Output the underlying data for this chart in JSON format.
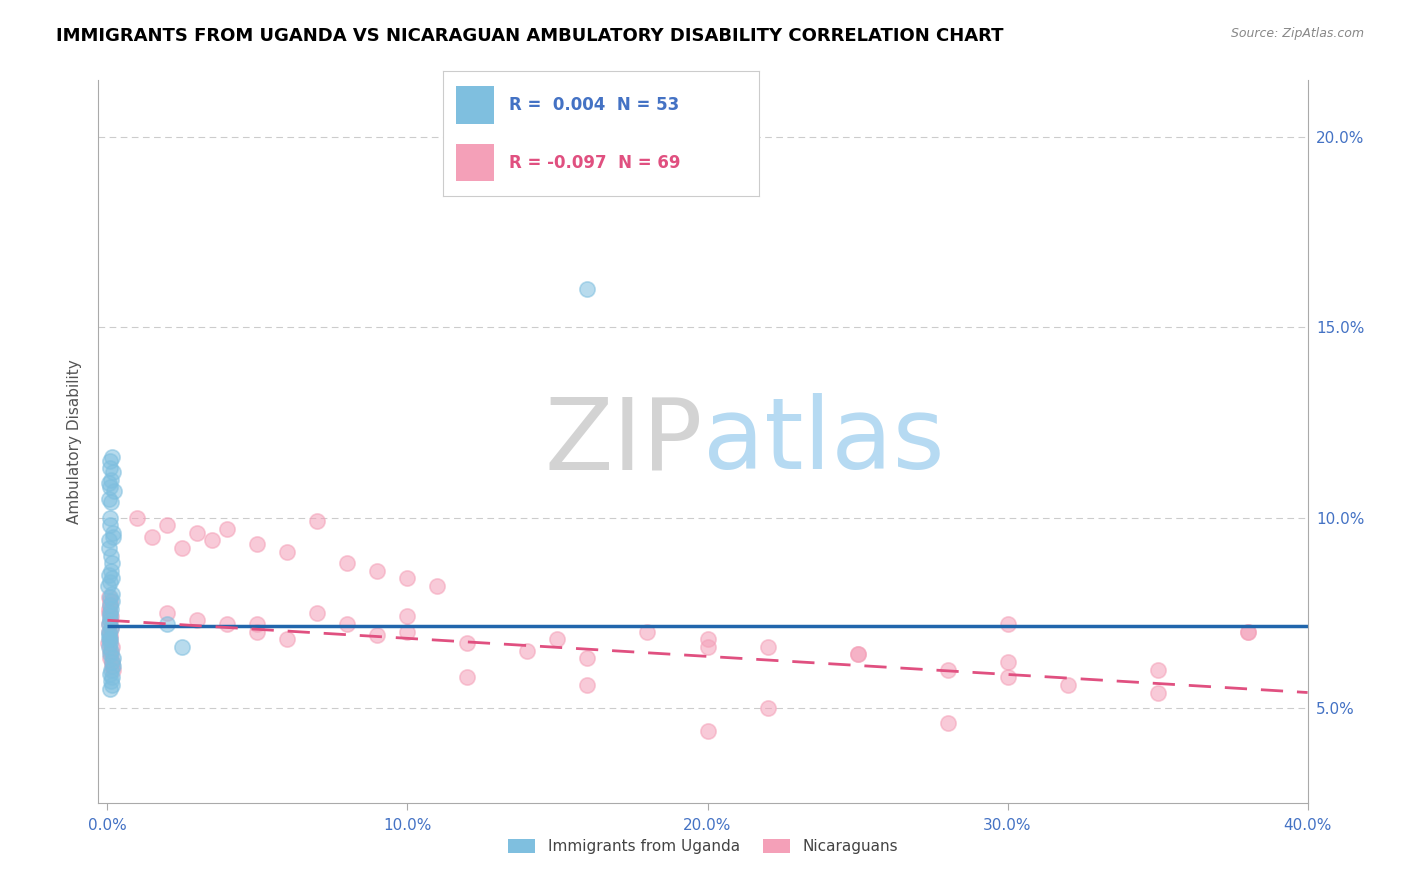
{
  "title": "IMMIGRANTS FROM UGANDA VS NICARAGUAN AMBULATORY DISABILITY CORRELATION CHART",
  "source": "Source: ZipAtlas.com",
  "ylabel": "Ambulatory Disability",
  "r1": 0.004,
  "r2": -0.097,
  "n1": 53,
  "n2": 69,
  "xmin": 0.0,
  "xmax": 0.4,
  "ymin": 0.025,
  "ymax": 0.215,
  "yticks": [
    0.05,
    0.1,
    0.15,
    0.2
  ],
  "ytick_labels": [
    "5.0%",
    "10.0%",
    "15.0%",
    "20.0%"
  ],
  "xticks": [
    0.0,
    0.1,
    0.2,
    0.3,
    0.4
  ],
  "xtick_labels": [
    "0.0%",
    "10.0%",
    "20.0%",
    "30.0%",
    "40.0%"
  ],
  "color_blue": "#7fbfdf",
  "color_pink": "#f4a0b8",
  "title_fontsize": 13,
  "axis_label_fontsize": 11,
  "tick_fontsize": 11,
  "scatter_alpha": 0.55,
  "scatter_size": 120,
  "uganda_x": [
    0.0005,
    0.001,
    0.0008,
    0.0012,
    0.0006,
    0.0009,
    0.0007,
    0.0015,
    0.0011,
    0.0004,
    0.0013,
    0.0008,
    0.0016,
    0.0005,
    0.001,
    0.0018,
    0.0007,
    0.0014,
    0.0009,
    0.0006,
    0.0003,
    0.0011,
    0.0015,
    0.0008,
    0.0004,
    0.0013,
    0.0019,
    0.0007,
    0.0016,
    0.001,
    0.0012,
    0.002,
    0.0009,
    0.0014,
    0.0006,
    0.0017,
    0.0011,
    0.0008,
    0.0015,
    0.0005,
    0.0013,
    0.0007,
    0.001,
    0.0018,
    0.0004,
    0.0016,
    0.0022,
    0.0009,
    0.0012,
    0.0006,
    0.02,
    0.025,
    0.16
  ],
  "uganda_y": [
    0.072,
    0.068,
    0.075,
    0.065,
    0.07,
    0.073,
    0.067,
    0.078,
    0.071,
    0.069,
    0.076,
    0.064,
    0.08,
    0.066,
    0.074,
    0.063,
    0.077,
    0.062,
    0.079,
    0.068,
    0.082,
    0.06,
    0.058,
    0.055,
    0.085,
    0.057,
    0.061,
    0.083,
    0.056,
    0.059,
    0.09,
    0.095,
    0.1,
    0.088,
    0.092,
    0.096,
    0.086,
    0.098,
    0.084,
    0.094,
    0.11,
    0.115,
    0.108,
    0.112,
    0.105,
    0.116,
    0.107,
    0.113,
    0.104,
    0.109,
    0.072,
    0.066,
    0.16
  ],
  "nicaraguan_x": [
    0.0004,
    0.0008,
    0.0006,
    0.001,
    0.0005,
    0.0009,
    0.0007,
    0.0012,
    0.0003,
    0.0011,
    0.0008,
    0.0015,
    0.0006,
    0.0013,
    0.0009,
    0.0016,
    0.0007,
    0.0014,
    0.0005,
    0.0018,
    0.01,
    0.015,
    0.02,
    0.025,
    0.03,
    0.035,
    0.04,
    0.05,
    0.06,
    0.07,
    0.08,
    0.09,
    0.1,
    0.11,
    0.02,
    0.03,
    0.04,
    0.05,
    0.06,
    0.07,
    0.08,
    0.09,
    0.1,
    0.12,
    0.14,
    0.16,
    0.18,
    0.2,
    0.22,
    0.25,
    0.28,
    0.3,
    0.32,
    0.35,
    0.38,
    0.05,
    0.1,
    0.15,
    0.2,
    0.25,
    0.3,
    0.35,
    0.2,
    0.3,
    0.38,
    0.12,
    0.16,
    0.22,
    0.28
  ],
  "nicaraguan_y": [
    0.07,
    0.068,
    0.072,
    0.065,
    0.075,
    0.063,
    0.069,
    0.074,
    0.067,
    0.071,
    0.073,
    0.066,
    0.076,
    0.064,
    0.078,
    0.062,
    0.077,
    0.061,
    0.079,
    0.06,
    0.1,
    0.095,
    0.098,
    0.092,
    0.096,
    0.094,
    0.097,
    0.093,
    0.091,
    0.099,
    0.088,
    0.086,
    0.084,
    0.082,
    0.075,
    0.073,
    0.072,
    0.07,
    0.068,
    0.075,
    0.072,
    0.069,
    0.074,
    0.067,
    0.065,
    0.063,
    0.07,
    0.068,
    0.066,
    0.064,
    0.06,
    0.058,
    0.056,
    0.054,
    0.07,
    0.072,
    0.07,
    0.068,
    0.066,
    0.064,
    0.062,
    0.06,
    0.044,
    0.072,
    0.07,
    0.058,
    0.056,
    0.05,
    0.046
  ],
  "trend_blue_y0": 0.0715,
  "trend_blue_y1": 0.0715,
  "trend_pink_y0": 0.073,
  "trend_pink_y1": 0.054
}
